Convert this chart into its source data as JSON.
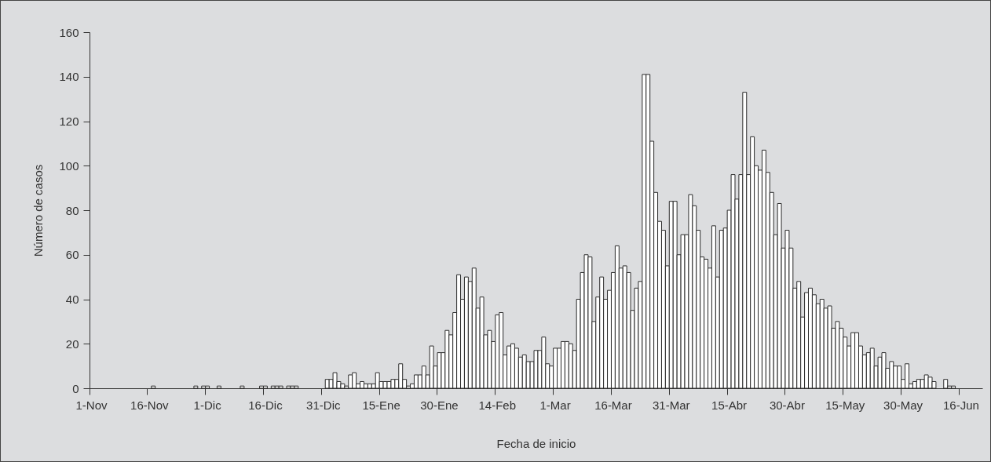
{
  "chart_data": {
    "type": "bar",
    "xlabel": "Fecha de inicio",
    "ylabel": "Número de casos",
    "color": "#ffffff",
    "ylim": [
      0,
      160
    ],
    "yticks": [
      0,
      20,
      40,
      60,
      80,
      100,
      120,
      140,
      160
    ],
    "categories": [
      "1-Nov",
      null,
      null,
      null,
      null,
      null,
      null,
      null,
      null,
      null,
      null,
      null,
      null,
      null,
      null,
      "16-Nov",
      null,
      null,
      null,
      null,
      null,
      null,
      null,
      null,
      null,
      null,
      null,
      null,
      null,
      null,
      "1-Dic",
      null,
      null,
      null,
      null,
      null,
      null,
      null,
      null,
      null,
      null,
      null,
      null,
      null,
      null,
      "16-Dic",
      null,
      null,
      null,
      null,
      null,
      null,
      null,
      null,
      null,
      null,
      null,
      null,
      null,
      null,
      "31-Dic",
      null,
      null,
      null,
      null,
      null,
      null,
      null,
      null,
      null,
      null,
      null,
      null,
      null,
      null,
      "15-Ene",
      null,
      null,
      null,
      null,
      null,
      null,
      null,
      null,
      null,
      null,
      null,
      null,
      null,
      null,
      "30-Ene",
      null,
      null,
      null,
      null,
      null,
      null,
      null,
      null,
      null,
      null,
      null,
      null,
      null,
      null,
      "14-Feb",
      null,
      null,
      null,
      null,
      null,
      null,
      null,
      null,
      null,
      null,
      null,
      null,
      null,
      null,
      "1-Mar",
      null,
      null,
      null,
      null,
      null,
      null,
      null,
      null,
      null,
      null,
      null,
      null,
      null,
      null,
      "16-Mar",
      null,
      null,
      null,
      null,
      null,
      null,
      null,
      null,
      null,
      null,
      null,
      null,
      null,
      null,
      "31-Mar",
      null,
      null,
      null,
      null,
      null,
      null,
      null,
      null,
      null,
      null,
      null,
      null,
      null,
      null,
      "15-Abr",
      null,
      null,
      null,
      null,
      null,
      null,
      null,
      null,
      null,
      null,
      null,
      null,
      null,
      null,
      "30-Abr",
      null,
      null,
      null,
      null,
      null,
      null,
      null,
      null,
      null,
      null,
      null,
      null,
      null,
      null,
      "15-May",
      null,
      null,
      null,
      null,
      null,
      null,
      null,
      null,
      null,
      null,
      null,
      null,
      null,
      null,
      "30-May",
      null,
      null,
      null,
      null,
      null,
      null,
      null,
      null,
      null,
      null,
      null,
      null,
      null,
      null,
      "16-Jun",
      null,
      null,
      null,
      null,
      null
    ],
    "values": [
      0,
      0,
      0,
      0,
      0,
      0,
      0,
      0,
      0,
      0,
      0,
      0,
      0,
      0,
      0,
      0,
      1,
      0,
      0,
      0,
      0,
      0,
      0,
      0,
      0,
      0,
      0,
      1,
      0,
      1,
      1,
      0,
      0,
      1,
      0,
      0,
      0,
      0,
      0,
      1,
      0,
      0,
      0,
      0,
      1,
      1,
      0,
      1,
      1,
      1,
      0,
      1,
      1,
      1,
      0,
      0,
      0,
      0,
      0,
      0,
      0,
      4,
      4,
      7,
      3,
      2,
      1,
      6,
      7,
      2,
      3,
      2,
      2,
      2,
      7,
      3,
      3,
      3,
      4,
      4,
      11,
      4,
      1,
      2,
      6,
      6,
      10,
      6,
      19,
      10,
      16,
      16,
      26,
      24,
      34,
      51,
      40,
      50,
      48,
      54,
      36,
      41,
      24,
      26,
      21,
      33,
      34,
      15,
      19,
      20,
      18,
      14,
      15,
      12,
      12,
      17,
      17,
      23,
      11,
      10,
      18,
      18,
      21,
      21,
      20,
      17,
      40,
      52,
      60,
      59,
      30,
      41,
      50,
      40,
      44,
      52,
      64,
      54,
      55,
      52,
      35,
      45,
      48,
      141,
      141,
      111,
      88,
      75,
      71,
      55,
      84,
      84,
      60,
      69,
      69,
      87,
      82,
      71,
      59,
      58,
      54,
      73,
      50,
      71,
      72,
      80,
      96,
      85,
      96,
      133,
      96,
      113,
      100,
      98,
      107,
      97,
      88,
      69,
      83,
      63,
      71,
      63,
      45,
      48,
      32,
      43,
      45,
      42,
      38,
      40,
      36,
      37,
      27,
      30,
      27,
      23,
      19,
      25,
      25,
      19,
      15,
      16,
      18,
      10,
      14,
      16,
      9,
      12,
      10,
      10,
      4,
      11,
      2,
      3,
      4,
      4,
      6,
      5,
      3,
      0,
      0,
      4,
      1,
      1,
      0,
      0,
      0,
      0,
      0,
      0,
      0
    ]
  }
}
